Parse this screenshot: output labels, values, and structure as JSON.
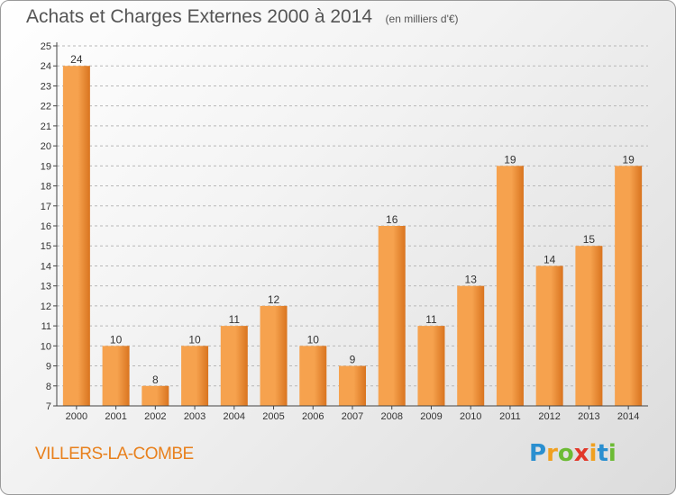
{
  "title": "Achats et Charges Externes 2000 à 2014",
  "subtitle": "(en milliers d'€)",
  "place": "VILLERS-LA-COMBE",
  "logo": {
    "letters": [
      "P",
      "r",
      "o",
      "x",
      "i",
      "t",
      "i"
    ],
    "colors": [
      "#2a8fd0",
      "#f0a020",
      "#6cbb34",
      "#e2382a",
      "#f0a020",
      "#2a8fd0",
      "#6cbb34"
    ]
  },
  "colors": {
    "bar_light": "#f6a24e",
    "bar_dark": "#d9741f",
    "axis": "#444444",
    "grid": "#b8b8b8",
    "title": "#555555",
    "place": "#e8801c"
  },
  "chart_data": {
    "type": "bar",
    "categories": [
      "2000",
      "2001",
      "2002",
      "2003",
      "2004",
      "2005",
      "2006",
      "2007",
      "2008",
      "2009",
      "2010",
      "2011",
      "2012",
      "2013",
      "2014"
    ],
    "values": [
      24,
      10,
      8,
      10,
      11,
      12,
      10,
      9,
      16,
      11,
      13,
      19,
      14,
      15,
      19
    ],
    "ylim": [
      7,
      25
    ],
    "yticks": [
      7,
      8,
      9,
      10,
      11,
      12,
      13,
      14,
      15,
      16,
      17,
      18,
      19,
      20,
      21,
      22,
      23,
      24,
      25
    ],
    "grid": true,
    "data_labels": true
  }
}
